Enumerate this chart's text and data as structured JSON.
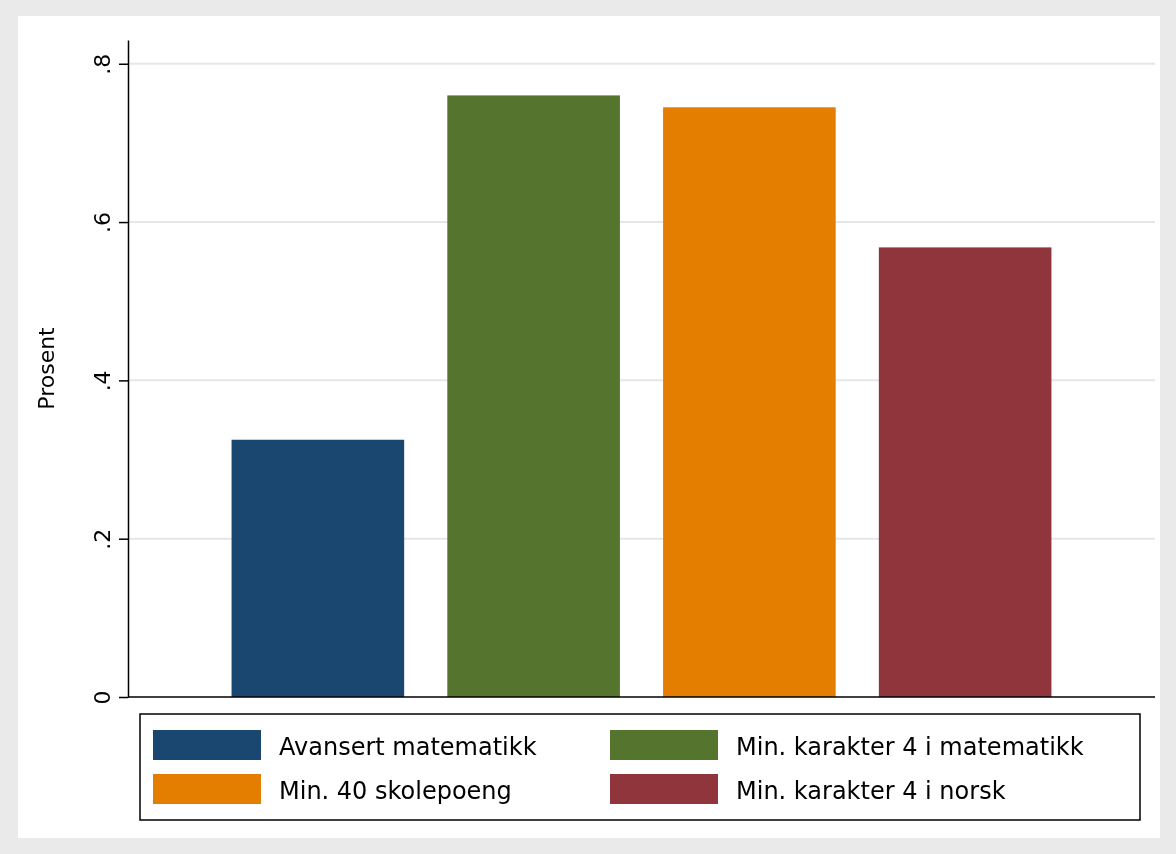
{
  "chart_data": {
    "type": "bar",
    "ylabel": "Prosent",
    "categories": [
      null
    ],
    "series": [
      {
        "name": "Avansert matematikk",
        "color": "#1a476f",
        "values": [
          0.325
        ]
      },
      {
        "name": "Min. karakter 4 i matematikk",
        "color": "#55752f",
        "values": [
          0.76
        ]
      },
      {
        "name": "Min. 40 skolepoeng",
        "color": "#e37e00",
        "values": [
          0.745
        ]
      },
      {
        "name": "Min. karakter 4 i norsk",
        "color": "#90353b",
        "values": [
          0.568
        ]
      }
    ],
    "ylim": [
      0,
      0.83
    ],
    "yticks": [
      0,
      {
        "value": 0.2,
        "label": ".2"
      },
      {
        "value": 0.4,
        "label": ".4"
      },
      {
        "value": 0.6,
        "label": ".6"
      },
      {
        "value": 0.8,
        "label": ".8"
      }
    ],
    "grid": "y",
    "legend": "bottom"
  }
}
